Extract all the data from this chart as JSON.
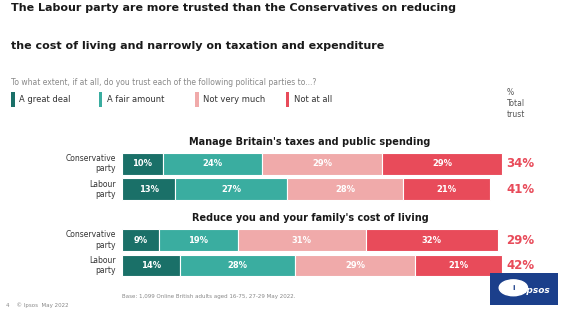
{
  "title_line1": "The Labour party are more trusted than the Conservatives on reducing",
  "title_line2": "the cost of living and narrowly on taxation and expenditure",
  "subtitle": "To what extent, if at all, do you trust each of the following political parties to...?",
  "legend_labels": [
    "A great deal",
    "A fair amount",
    "Not very much",
    "Not at all"
  ],
  "legend_colors": [
    "#1a7068",
    "#3aada0",
    "#f0aaaa",
    "#e84b5a"
  ],
  "section1_title": "Manage Britain's taxes and public spending",
  "section2_title": "Reduce you and your family's cost of living",
  "bars": [
    {
      "label": "Conservative\nparty",
      "values": [
        10,
        24,
        29,
        29
      ],
      "total": "34%"
    },
    {
      "label": "Labour\nparty",
      "values": [
        13,
        27,
        28,
        21
      ],
      "total": "41%"
    },
    {
      "label": "Conservative\nparty",
      "values": [
        9,
        19,
        31,
        32
      ],
      "total": "29%"
    },
    {
      "label": "Labour\nparty",
      "values": [
        14,
        28,
        29,
        21
      ],
      "total": "42%"
    }
  ],
  "bar_colors": [
    "#1a7068",
    "#3aada0",
    "#f0aaaa",
    "#e84b5a"
  ],
  "bg_color": "#ffffff",
  "title_color": "#1a1a1a",
  "subtitle_color": "#888888",
  "section_title_color": "#1a1a1a",
  "total_trust_color": "#e84b5a",
  "footnote": "Base: 1,099 Online British adults aged 16-75, 27-29 May 2022.",
  "page_note": "4    © Ipsos  May 2022",
  "scale_denominator": 91
}
